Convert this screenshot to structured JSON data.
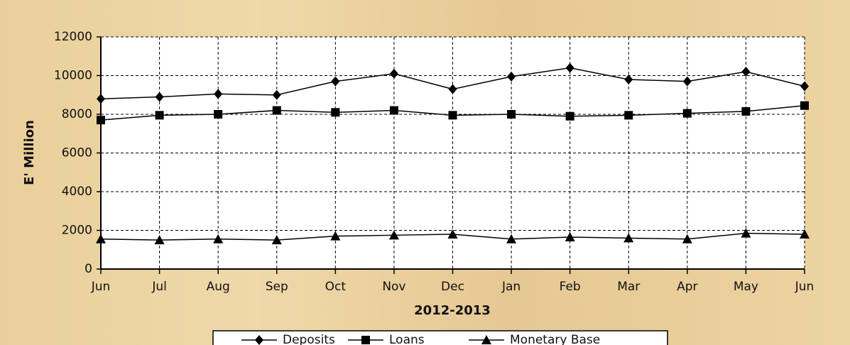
{
  "chart_data": {
    "type": "line",
    "x_label": "2012-2013",
    "y_label": "E' Million",
    "categories": [
      "Jun",
      "Jul",
      "Aug",
      "Sep",
      "Oct",
      "Nov",
      "Dec",
      "Jan",
      "Feb",
      "Mar",
      "Apr",
      "May",
      "Jun"
    ],
    "series": [
      {
        "name": "Deposits",
        "color": "#000000",
        "marker": "diamond",
        "values": [
          8800,
          8900,
          9050,
          9000,
          9700,
          10100,
          9300,
          9950,
          10400,
          9800,
          9700,
          10200,
          9450
        ]
      },
      {
        "name": "Loans",
        "color": "#000000",
        "marker": "square",
        "values": [
          7700,
          7950,
          8000,
          8200,
          8100,
          8200,
          7950,
          8000,
          7900,
          7950,
          8050,
          8150,
          8450
        ]
      },
      {
        "name": "Monetary Base",
        "color": "#000000",
        "marker": "triangle",
        "values": [
          1550,
          1500,
          1550,
          1500,
          1700,
          1750,
          1800,
          1550,
          1650,
          1600,
          1550,
          1850,
          1800
        ]
      }
    ],
    "ylim": [
      0,
      12000
    ],
    "yticks": [
      0,
      2000,
      4000,
      6000,
      8000,
      10000,
      12000
    ],
    "grid": true,
    "legend": "bottom"
  }
}
